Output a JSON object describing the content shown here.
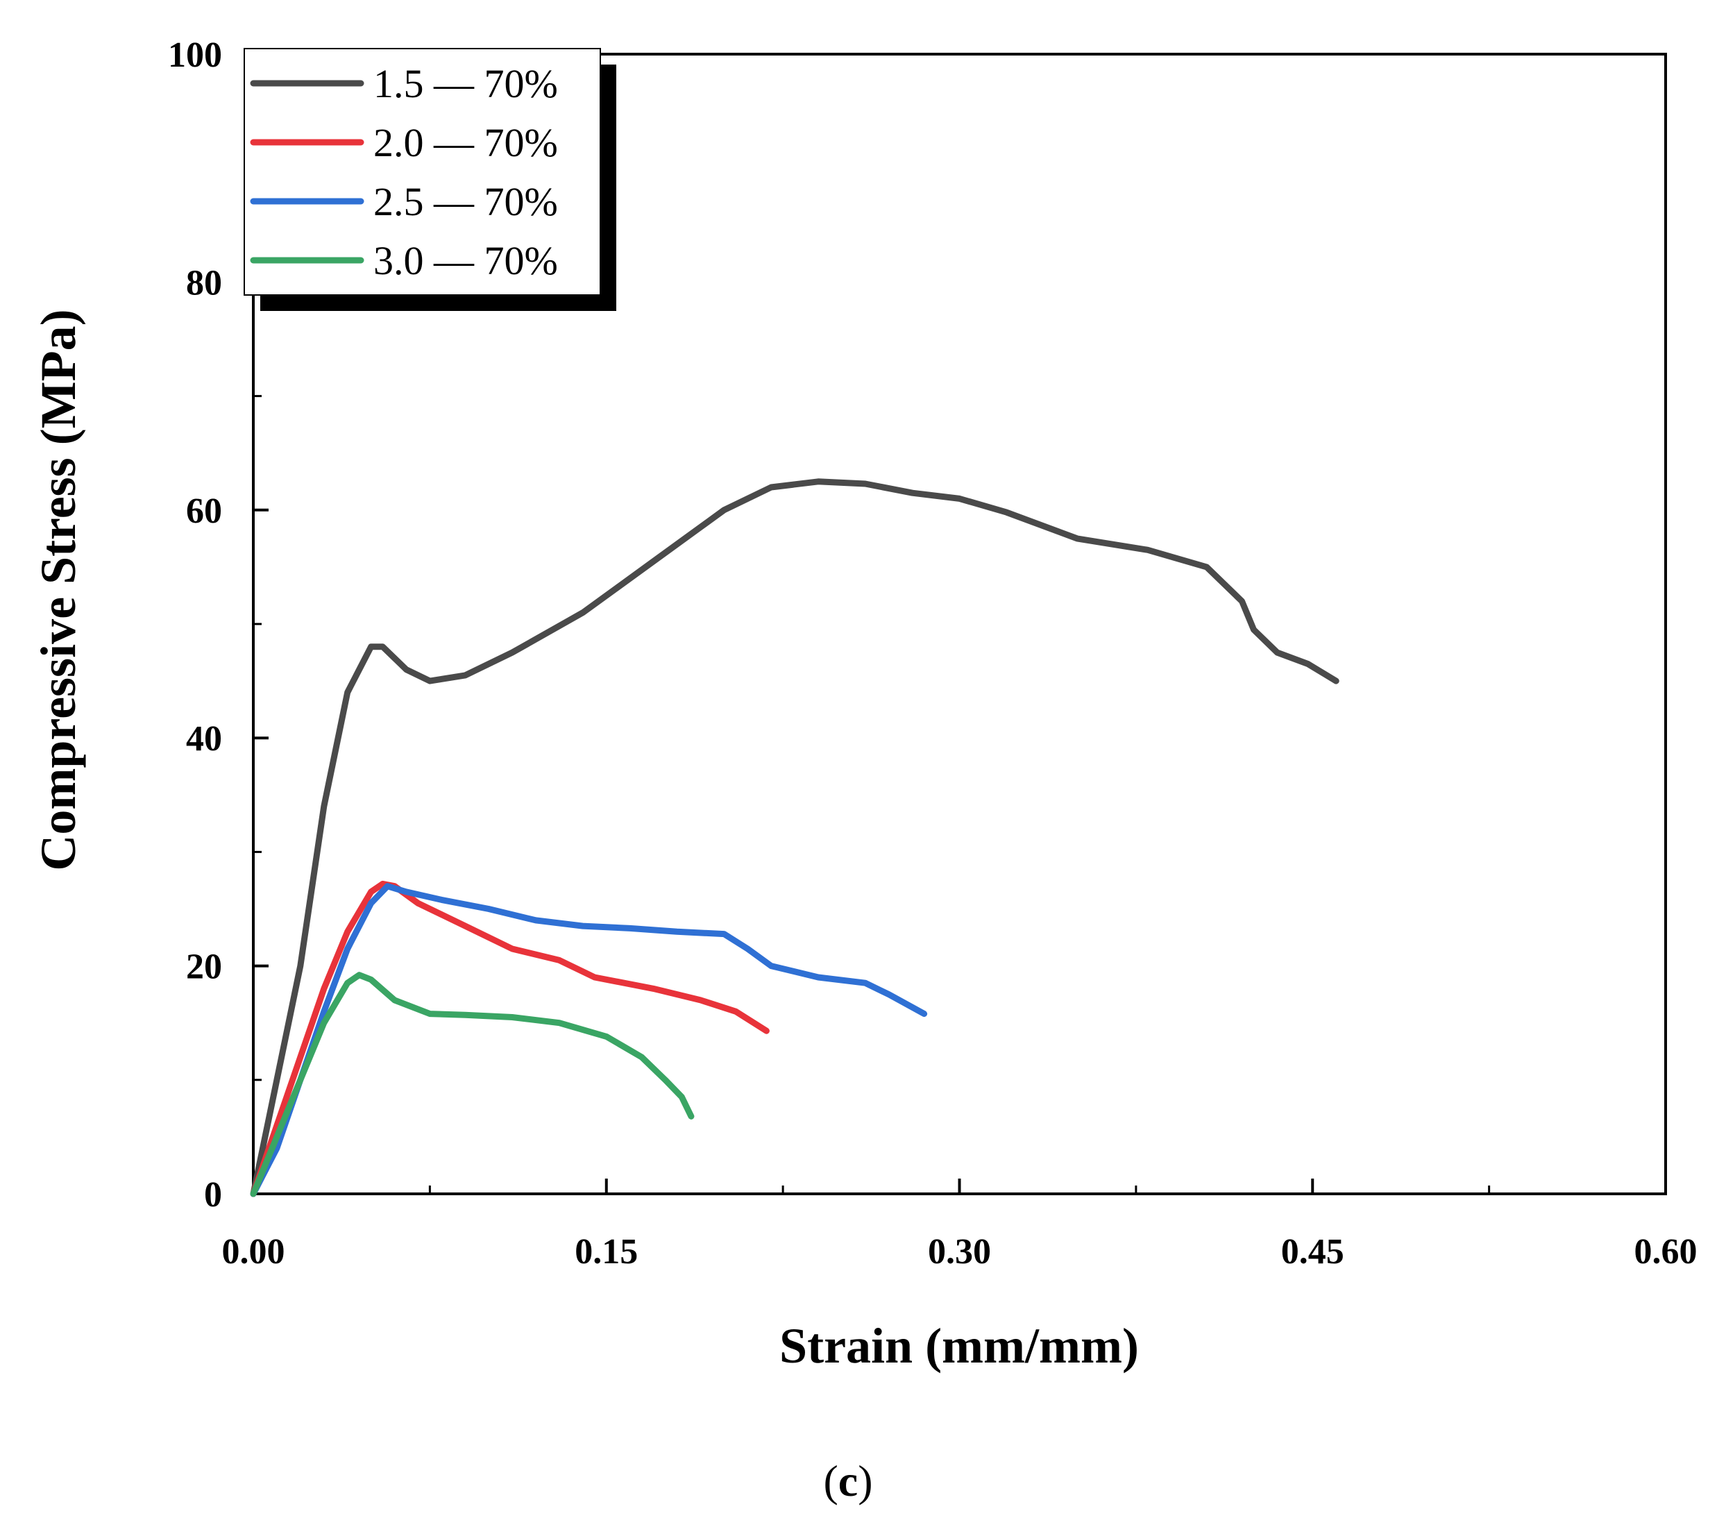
{
  "chart_data": {
    "type": "line",
    "title": "",
    "xlabel": "Strain (mm/mm)",
    "ylabel": "Compressive Stress (MPa)",
    "xlim": [
      0,
      0.6
    ],
    "ylim": [
      0,
      100
    ],
    "xticks": [
      0.0,
      0.15,
      0.3,
      0.45,
      0.6
    ],
    "xtick_labels": [
      "0.00",
      "0.15",
      "0.30",
      "0.45",
      "0.60"
    ],
    "yticks": [
      0,
      20,
      40,
      60,
      80,
      100
    ],
    "ytick_labels": [
      "0",
      "20",
      "40",
      "60",
      "80",
      "100"
    ],
    "grid": false,
    "legend_position": "top-left",
    "caption_prefix": "(",
    "caption_letter": "c",
    "caption_suffix": ")",
    "series": [
      {
        "name": "1.5 — 70%",
        "color": "#4a4a4a",
        "points": [
          [
            0,
            0
          ],
          [
            0.01,
            10
          ],
          [
            0.02,
            20
          ],
          [
            0.03,
            34
          ],
          [
            0.04,
            44
          ],
          [
            0.05,
            48
          ],
          [
            0.055,
            48
          ],
          [
            0.065,
            46
          ],
          [
            0.075,
            45
          ],
          [
            0.09,
            45.5
          ],
          [
            0.11,
            47.5
          ],
          [
            0.14,
            51
          ],
          [
            0.17,
            55.5
          ],
          [
            0.2,
            60
          ],
          [
            0.22,
            62
          ],
          [
            0.24,
            62.5
          ],
          [
            0.26,
            62.3
          ],
          [
            0.28,
            61.5
          ],
          [
            0.3,
            61
          ],
          [
            0.32,
            59.8
          ],
          [
            0.35,
            57.5
          ],
          [
            0.38,
            56.5
          ],
          [
            0.405,
            55
          ],
          [
            0.42,
            52
          ],
          [
            0.425,
            49.5
          ],
          [
            0.435,
            47.5
          ],
          [
            0.448,
            46.5
          ],
          [
            0.46,
            45
          ]
        ]
      },
      {
        "name": "2.0 — 70%",
        "color": "#e8333a",
        "points": [
          [
            0,
            0
          ],
          [
            0.01,
            6
          ],
          [
            0.02,
            12
          ],
          [
            0.03,
            18
          ],
          [
            0.04,
            23
          ],
          [
            0.05,
            26.5
          ],
          [
            0.055,
            27.2
          ],
          [
            0.06,
            27
          ],
          [
            0.07,
            25.5
          ],
          [
            0.09,
            23.5
          ],
          [
            0.11,
            21.5
          ],
          [
            0.13,
            20.5
          ],
          [
            0.145,
            19
          ],
          [
            0.17,
            18
          ],
          [
            0.19,
            17
          ],
          [
            0.205,
            16
          ],
          [
            0.218,
            14.3
          ]
        ]
      },
      {
        "name": "2.5 — 70%",
        "color": "#2f70d4",
        "points": [
          [
            0,
            0
          ],
          [
            0.01,
            4
          ],
          [
            0.02,
            10
          ],
          [
            0.03,
            16
          ],
          [
            0.04,
            21.5
          ],
          [
            0.05,
            25.5
          ],
          [
            0.057,
            27
          ],
          [
            0.065,
            26.5
          ],
          [
            0.08,
            25.8
          ],
          [
            0.1,
            25
          ],
          [
            0.12,
            24
          ],
          [
            0.14,
            23.5
          ],
          [
            0.16,
            23.3
          ],
          [
            0.18,
            23
          ],
          [
            0.2,
            22.8
          ],
          [
            0.21,
            21.5
          ],
          [
            0.22,
            20
          ],
          [
            0.24,
            19
          ],
          [
            0.26,
            18.5
          ],
          [
            0.27,
            17.5
          ],
          [
            0.285,
            15.8
          ]
        ]
      },
      {
        "name": "3.0 — 70%",
        "color": "#3aa564",
        "points": [
          [
            0,
            0
          ],
          [
            0.01,
            5
          ],
          [
            0.02,
            10
          ],
          [
            0.03,
            15
          ],
          [
            0.04,
            18.5
          ],
          [
            0.045,
            19.2
          ],
          [
            0.05,
            18.8
          ],
          [
            0.06,
            17
          ],
          [
            0.075,
            15.8
          ],
          [
            0.09,
            15.7
          ],
          [
            0.11,
            15.5
          ],
          [
            0.13,
            15
          ],
          [
            0.15,
            13.8
          ],
          [
            0.165,
            12
          ],
          [
            0.175,
            10
          ],
          [
            0.182,
            8.5
          ],
          [
            0.186,
            6.8
          ]
        ]
      }
    ]
  }
}
